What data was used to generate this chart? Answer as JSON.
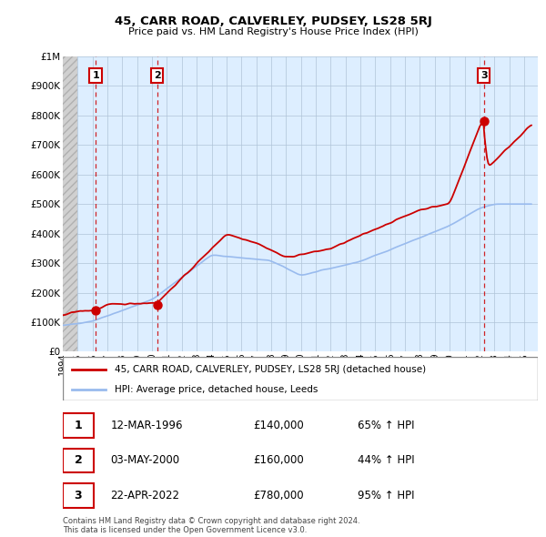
{
  "title": "45, CARR ROAD, CALVERLEY, PUDSEY, LS28 5RJ",
  "subtitle": "Price paid vs. HM Land Registry's House Price Index (HPI)",
  "background_color": "#ffffff",
  "plot_bg_color": "#ddeeff",
  "grid_color": "#b0c4d8",
  "ylim": [
    0,
    1000000
  ],
  "yticks": [
    0,
    100000,
    200000,
    300000,
    400000,
    500000,
    600000,
    700000,
    800000,
    900000,
    1000000
  ],
  "ytick_labels": [
    "£0",
    "£100K",
    "£200K",
    "£300K",
    "£400K",
    "£500K",
    "£600K",
    "£700K",
    "£800K",
    "£900K",
    "£1M"
  ],
  "xlim_start": 1994.0,
  "xlim_end": 2025.92,
  "xticks": [
    1994,
    1995,
    1996,
    1997,
    1998,
    1999,
    2000,
    2001,
    2002,
    2003,
    2004,
    2005,
    2006,
    2007,
    2008,
    2009,
    2010,
    2011,
    2012,
    2013,
    2014,
    2015,
    2016,
    2017,
    2018,
    2019,
    2020,
    2021,
    2022,
    2023,
    2024,
    2025
  ],
  "hatch_end": 1995.0,
  "sale_dates": [
    1996.21,
    2000.35,
    2022.3
  ],
  "sale_prices": [
    140000,
    160000,
    780000
  ],
  "sale_labels": [
    "1",
    "2",
    "3"
  ],
  "hpi_color": "#99bbee",
  "price_color": "#cc0000",
  "legend_price_label": "45, CARR ROAD, CALVERLEY, PUDSEY, LS28 5RJ (detached house)",
  "legend_hpi_label": "HPI: Average price, detached house, Leeds",
  "table_entries": [
    {
      "num": "1",
      "date": "12-MAR-1996",
      "price": "£140,000",
      "hpi": "65% ↑ HPI"
    },
    {
      "num": "2",
      "date": "03-MAY-2000",
      "price": "£160,000",
      "hpi": "44% ↑ HPI"
    },
    {
      "num": "3",
      "date": "22-APR-2022",
      "price": "£780,000",
      "hpi": "95% ↑ HPI"
    }
  ],
  "footnote": "Contains HM Land Registry data © Crown copyright and database right 2024.\nThis data is licensed under the Open Government Licence v3.0."
}
